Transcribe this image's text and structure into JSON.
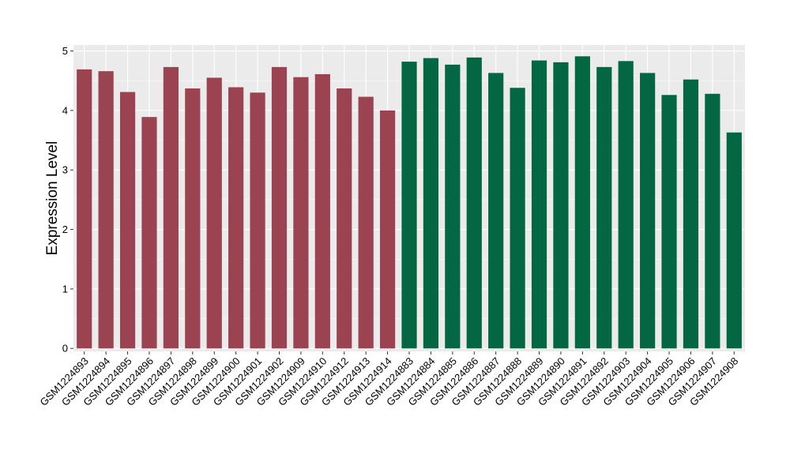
{
  "chart_data": {
    "type": "bar",
    "ylabel": "Expression Level",
    "xlabel": "",
    "ylim": [
      -0.05,
      5.1
    ],
    "yticks": [
      0,
      1,
      2,
      3,
      4,
      5
    ],
    "grid": true,
    "background": "#ebebeb",
    "gridColor": "#ffffff",
    "series": [
      {
        "color": "#9b4350",
        "categories": [
          "GSM1224893",
          "GSM1224894",
          "GSM1224895",
          "GSM1224896",
          "GSM1224897",
          "GSM1224898",
          "GSM1224899",
          "GSM1224900",
          "GSM1224901",
          "GSM1224902",
          "GSM1224909",
          "GSM1224910",
          "GSM1224912",
          "GSM1224913",
          "GSM1224914"
        ],
        "values": [
          4.69,
          4.66,
          4.31,
          3.89,
          4.73,
          4.37,
          4.55,
          4.39,
          4.3,
          4.73,
          4.56,
          4.61,
          4.37,
          4.23,
          4.0
        ]
      },
      {
        "color": "#046744",
        "categories": [
          "GSM1224883",
          "GSM1224884",
          "GSM1224885",
          "GSM1224886",
          "GSM1224887",
          "GSM1224888",
          "GSM1224889",
          "GSM1224890",
          "GSM1224891",
          "GSM1224892",
          "GSM1224903",
          "GSM1224904",
          "GSM1224905",
          "GSM1224906",
          "GSM1224907",
          "GSM1224908"
        ],
        "values": [
          4.82,
          4.88,
          4.77,
          4.89,
          4.63,
          4.38,
          4.84,
          4.81,
          4.91,
          4.73,
          4.83,
          4.63,
          4.26,
          4.52,
          4.28,
          3.63
        ]
      }
    ]
  }
}
